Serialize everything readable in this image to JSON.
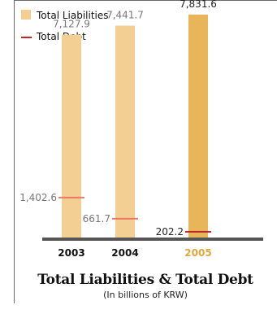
{
  "chart_data": {
    "type": "bar",
    "title": "Total Liabilities & Total Debt",
    "subtitle": "(In billions of KRW)",
    "categories": [
      "2003",
      "2004",
      "2005"
    ],
    "series": [
      {
        "name": "Total Liabilities",
        "values": [
          7127.9,
          7441.7,
          7831.6
        ],
        "labels": [
          "7,127.9",
          "7,441.7",
          "7,831.6"
        ]
      },
      {
        "name": "Total Debt",
        "values": [
          1402.6,
          661.7,
          202.2
        ],
        "labels": [
          "1,402.6",
          "661.7",
          "202.2"
        ]
      }
    ],
    "ylim": [
      0,
      8200
    ],
    "grid": false,
    "legend_position": "top-left",
    "highlight_category": "2005"
  },
  "colors": {
    "bar": "#f3cf94",
    "bar_highlight": "#e8b55a",
    "debt_line": "#e8796a",
    "debt_line_highlight": "#c0262d",
    "value_label": "#777777",
    "value_label_highlight": "#222222",
    "category_highlight": "#e0a640",
    "baseline": "#555555"
  }
}
